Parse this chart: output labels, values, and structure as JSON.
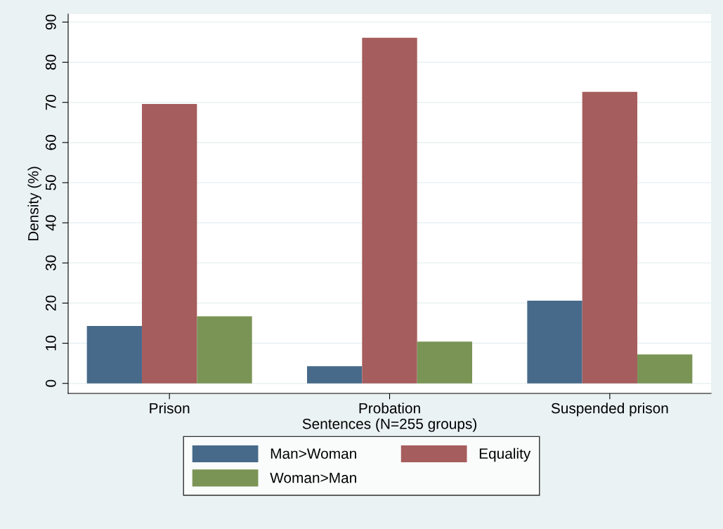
{
  "chart_data": {
    "type": "bar",
    "xlabel": "Sentences (N=255 groups)",
    "ylabel": "Density (%)",
    "categories": [
      "Prison",
      "Probation",
      "Suspended prison"
    ],
    "series": [
      {
        "name": "Man>Woman",
        "color": "#476a8a",
        "values": [
          14.3,
          4.3,
          20.6
        ]
      },
      {
        "name": "Equality",
        "color": "#a65d5d",
        "values": [
          69.6,
          86.1,
          72.6
        ]
      },
      {
        "name": "Woman>Man",
        "color": "#7a9455",
        "values": [
          16.7,
          10.4,
          7.2
        ]
      }
    ],
    "ylim": [
      -2.5,
      92
    ],
    "yticks": [
      0,
      10,
      20,
      30,
      40,
      50,
      60,
      70,
      80,
      90
    ],
    "grid": "y",
    "legend": "bottom"
  }
}
